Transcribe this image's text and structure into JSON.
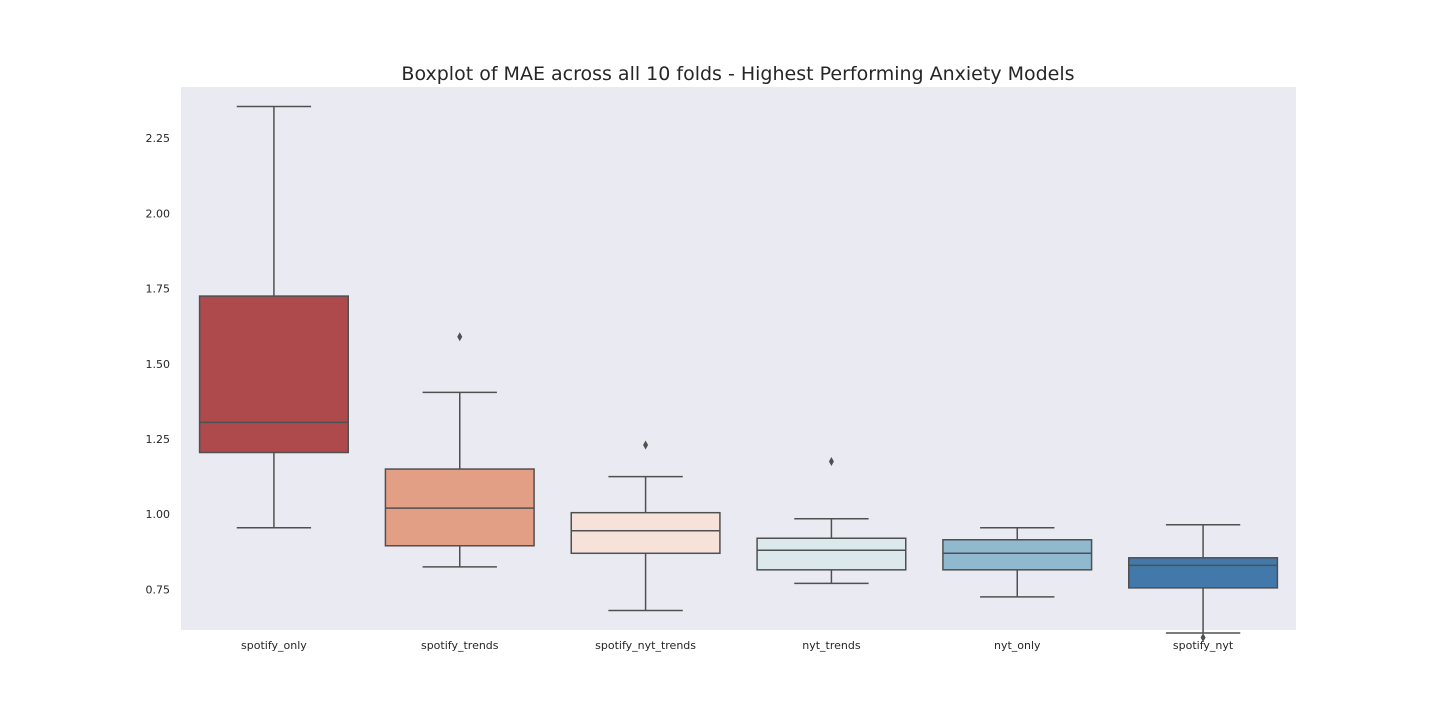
{
  "chart_data": {
    "type": "boxplot",
    "title": "Boxplot of MAE across all 10 folds - Highest Performing Anxiety Models",
    "xlabel": "",
    "ylabel": "",
    "ylim": [
      0.615,
      2.42
    ],
    "yticks": [
      0.75,
      1.0,
      1.25,
      1.5,
      1.75,
      2.0,
      2.25
    ],
    "ytick_labels": [
      "0.75",
      "1.00",
      "1.25",
      "1.50",
      "1.75",
      "2.00",
      "2.25"
    ],
    "grid": false,
    "background": "#eaeaf2",
    "categories": [
      "spotify_only",
      "spotify_trends",
      "spotify_nyt_trends",
      "nyt_trends",
      "nyt_only",
      "spotify_nyt"
    ],
    "boxes": [
      {
        "category": "spotify_only",
        "whisker_low": 0.955,
        "q1": 1.205,
        "median": 1.305,
        "q3": 1.725,
        "whisker_high": 2.355,
        "outliers": [],
        "color": "#ae4a4b"
      },
      {
        "category": "spotify_trends",
        "whisker_low": 0.825,
        "q1": 0.895,
        "median": 1.02,
        "q3": 1.15,
        "whisker_high": 1.405,
        "outliers": [
          1.59
        ],
        "color": "#e39f85"
      },
      {
        "category": "spotify_nyt_trends",
        "whisker_low": 0.68,
        "q1": 0.87,
        "median": 0.945,
        "q3": 1.005,
        "whisker_high": 1.125,
        "outliers": [
          1.23
        ],
        "color": "#f6e2d9"
      },
      {
        "category": "nyt_trends",
        "whisker_low": 0.77,
        "q1": 0.815,
        "median": 0.88,
        "q3": 0.92,
        "whisker_high": 0.985,
        "outliers": [
          1.175
        ],
        "color": "#dbe8ec"
      },
      {
        "category": "nyt_only",
        "whisker_low": 0.725,
        "q1": 0.815,
        "median": 0.87,
        "q3": 0.915,
        "whisker_high": 0.955,
        "outliers": [],
        "color": "#90b9d0"
      },
      {
        "category": "spotify_nyt",
        "whisker_low": 0.605,
        "q1": 0.755,
        "median": 0.83,
        "q3": 0.855,
        "whisker_high": 0.965,
        "outliers": [
          0.59
        ],
        "color": "#4278aa"
      }
    ],
    "line_color": "#505050"
  }
}
